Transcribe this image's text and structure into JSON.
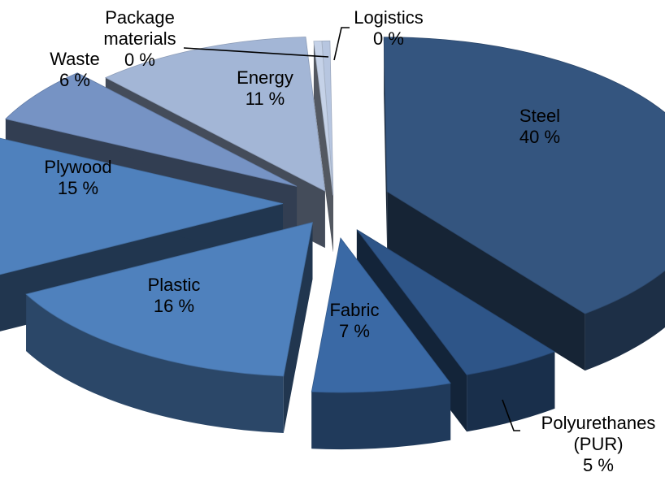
{
  "chart_data": {
    "type": "pie",
    "title": "",
    "three_d": true,
    "exploded": true,
    "legend": "none",
    "slices": [
      {
        "label": "Logistics",
        "value_label": "0 %",
        "value": 0.4,
        "color": "#b7c6e0"
      },
      {
        "label": "Steel",
        "value_label": "40 %",
        "value": 40,
        "color": "#34557f"
      },
      {
        "label": "Polyurethanes\n(PUR)",
        "value_label": "5 %",
        "value": 5,
        "color": "#2e5588"
      },
      {
        "label": "Fabric",
        "value_label": "7 %",
        "value": 7,
        "color": "#3a69a5"
      },
      {
        "label": "Plastic",
        "value_label": "16 %",
        "value": 16,
        "color": "#4f81bd"
      },
      {
        "label": "Plywood",
        "value_label": "15 %",
        "value": 15,
        "color": "#4f81bd"
      },
      {
        "label": "Waste",
        "value_label": "6 %",
        "value": 6,
        "color": "#7693c4"
      },
      {
        "label": "Energy",
        "value_label": "11 %",
        "value": 11,
        "color": "#a3b6d6"
      },
      {
        "label": "Package\nmaterials",
        "value_label": "0 %",
        "value": 0.4,
        "color": "#c5d2e8"
      }
    ]
  }
}
